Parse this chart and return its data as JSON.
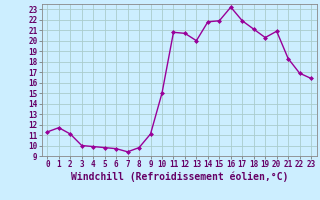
{
  "x": [
    0,
    1,
    2,
    3,
    4,
    5,
    6,
    7,
    8,
    9,
    10,
    11,
    12,
    13,
    14,
    15,
    16,
    17,
    18,
    19,
    20,
    21,
    22,
    23
  ],
  "y": [
    11.3,
    11.7,
    11.1,
    10.0,
    9.9,
    9.8,
    9.7,
    9.4,
    9.8,
    11.1,
    15.0,
    20.8,
    20.7,
    20.0,
    21.8,
    21.9,
    23.2,
    21.9,
    21.1,
    20.3,
    20.9,
    18.3,
    16.9,
    16.4
  ],
  "line_color": "#990099",
  "marker": "D",
  "markersize": 2.0,
  "linewidth": 1.0,
  "bg_color": "#cceeff",
  "grid_color": "#aacccc",
  "xlabel": "Windchill (Refroidissement éolien,°C)",
  "ylabel": "",
  "ylim": [
    9,
    23.5
  ],
  "xlim": [
    -0.5,
    23.5
  ],
  "yticks": [
    9,
    10,
    11,
    12,
    13,
    14,
    15,
    16,
    17,
    18,
    19,
    20,
    21,
    22,
    23
  ],
  "xticks": [
    0,
    1,
    2,
    3,
    4,
    5,
    6,
    7,
    8,
    9,
    10,
    11,
    12,
    13,
    14,
    15,
    16,
    17,
    18,
    19,
    20,
    21,
    22,
    23
  ],
  "tick_fontsize": 5.5,
  "xlabel_fontsize": 7.0
}
